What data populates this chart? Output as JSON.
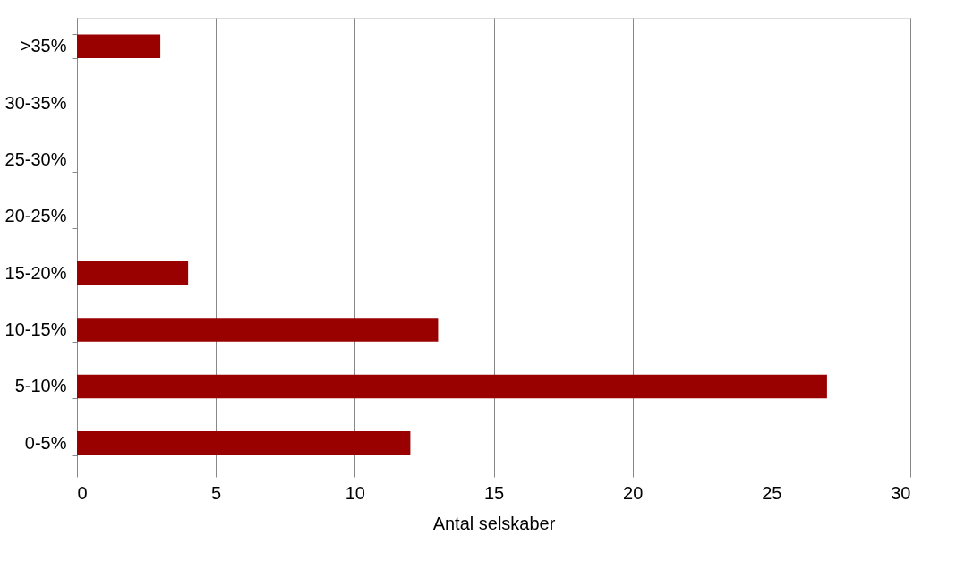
{
  "chart_data": {
    "type": "bar",
    "orientation": "horizontal",
    "xlabel": "Antal selskaber",
    "categories": [
      ">35%",
      "30-35%",
      "25-30%",
      "20-25%",
      "15-20%",
      "10-15%",
      "5-10%",
      "0-5%"
    ],
    "values": [
      3,
      0,
      0,
      0,
      4,
      13,
      27,
      12
    ],
    "color": "#990000",
    "xlim": [
      0,
      30
    ],
    "xticks": [
      0,
      5,
      10,
      15,
      20,
      25,
      30
    ],
    "grid": "x"
  }
}
